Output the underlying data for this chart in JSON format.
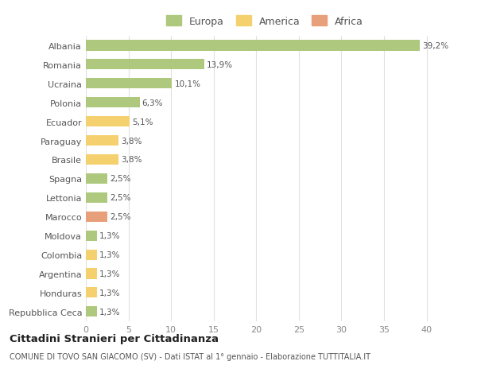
{
  "countries": [
    "Albania",
    "Romania",
    "Ucraina",
    "Polonia",
    "Ecuador",
    "Paraguay",
    "Brasile",
    "Spagna",
    "Lettonia",
    "Marocco",
    "Moldova",
    "Colombia",
    "Argentina",
    "Honduras",
    "Repubblica Ceca"
  ],
  "values": [
    39.2,
    13.9,
    10.1,
    6.3,
    5.1,
    3.8,
    3.8,
    2.5,
    2.5,
    2.5,
    1.3,
    1.3,
    1.3,
    1.3,
    1.3
  ],
  "labels": [
    "39,2%",
    "13,9%",
    "10,1%",
    "6,3%",
    "5,1%",
    "3,8%",
    "3,8%",
    "2,5%",
    "2,5%",
    "2,5%",
    "1,3%",
    "1,3%",
    "1,3%",
    "1,3%",
    "1,3%"
  ],
  "continents": [
    "Europa",
    "Europa",
    "Europa",
    "Europa",
    "America",
    "America",
    "America",
    "Europa",
    "Europa",
    "Africa",
    "Europa",
    "America",
    "America",
    "America",
    "Europa"
  ],
  "colors": {
    "Europa": "#aec97e",
    "America": "#f5d06e",
    "Africa": "#e8a07a"
  },
  "title": "Cittadini Stranieri per Cittadinanza",
  "subtitle": "COMUNE DI TOVO SAN GIACOMO (SV) - Dati ISTAT al 1° gennaio - Elaborazione TUTTITALIA.IT",
  "xlim": [
    0,
    42
  ],
  "xticks": [
    0,
    5,
    10,
    15,
    20,
    25,
    30,
    35,
    40
  ],
  "bg_color": "#ffffff",
  "grid_color": "#e0e0e0"
}
